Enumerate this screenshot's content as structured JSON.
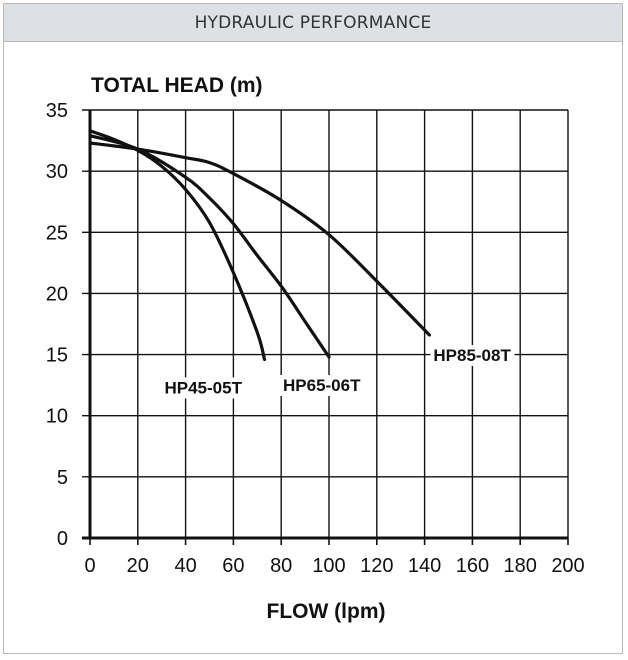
{
  "header": {
    "title": "HYDRAULIC PERFORMANCE"
  },
  "chart_data": {
    "type": "line",
    "title": "HYDRAULIC PERFORMANCE",
    "xlabel": "FLOW (lpm)",
    "ylabel": "TOTAL HEAD (m)",
    "xlim": [
      0,
      200
    ],
    "ylim": [
      0,
      35
    ],
    "xticks": [
      0,
      20,
      40,
      60,
      80,
      100,
      120,
      140,
      160,
      180,
      200
    ],
    "yticks": [
      0,
      5,
      10,
      15,
      20,
      25,
      30,
      35
    ],
    "grid": true,
    "series": [
      {
        "name": "HP45-05T",
        "x": [
          0,
          10,
          20,
          30,
          40,
          50,
          60,
          70,
          73
        ],
        "y": [
          33.3,
          32.6,
          31.7,
          30.4,
          28.5,
          25.8,
          21.7,
          16.8,
          14.6
        ]
      },
      {
        "name": "HP65-06T",
        "x": [
          0,
          20,
          40,
          50,
          60,
          70,
          80,
          90,
          100
        ],
        "y": [
          32.9,
          31.8,
          29.5,
          27.8,
          25.7,
          23.1,
          20.6,
          17.7,
          14.8
        ]
      },
      {
        "name": "HP85-08T",
        "x": [
          0,
          20,
          40,
          50,
          60,
          80,
          100,
          120,
          142
        ],
        "y": [
          32.3,
          31.8,
          31.1,
          30.7,
          29.8,
          27.6,
          24.8,
          21.0,
          16.6
        ]
      }
    ]
  }
}
